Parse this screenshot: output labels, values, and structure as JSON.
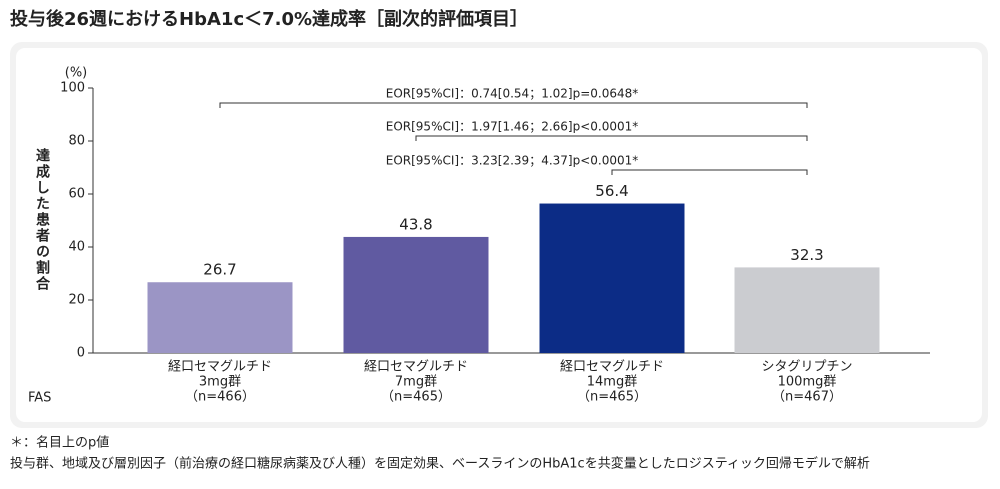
{
  "chart_data": {
    "type": "bar",
    "title": "投与後26週におけるHbA1c＜7.0%達成率［副次的評価項目］",
    "y_label": "達成した患者の割合",
    "y_unit": "(%)",
    "categories": [
      [
        "経口セマグルチド",
        "3mg群",
        "（n=466）"
      ],
      [
        "経口セマグルチド",
        "7mg群",
        "（n=465）"
      ],
      [
        "経口セマグルチド",
        "14mg群",
        "（n=465）"
      ],
      [
        "シタグリプチン",
        "100mg群",
        "（n=467）"
      ]
    ],
    "values": [
      26.7,
      43.8,
      56.4,
      32.3
    ],
    "colors": [
      "#9b95c5",
      "#605aa1",
      "#0c2c86",
      "#cbccd0"
    ],
    "ylim": [
      0,
      100
    ],
    "yticks": [
      0,
      20,
      40,
      60,
      80,
      100
    ],
    "grid": false,
    "annotations": [
      "EOR[95%CI]：0.74[0.54；1.02]p=0.0648*",
      "EOR[95%CI]：1.97[1.46；2.66]p<0.0001*",
      "EOR[95%CI]：3.23[2.39；4.37]p<0.0001*"
    ],
    "population_label": "FAS",
    "footnotes": [
      "＊：名目上のp値",
      "投与群、地域及び層別因子（前治療の経口糖尿病薬及び人種）を固定効果、ベースラインのHbA1cを共変量としたロジスティック回帰モデルで解析"
    ]
  }
}
